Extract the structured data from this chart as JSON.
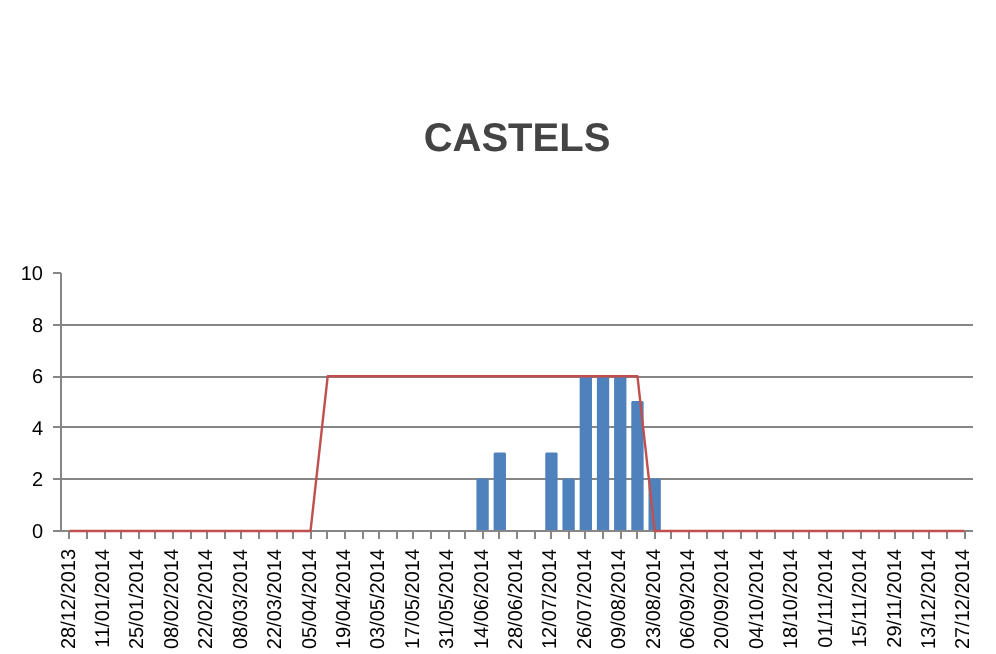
{
  "chart_data": {
    "type": "bar",
    "title": "CASTELS",
    "categories": [
      "28/12/2013",
      null,
      "11/01/2014",
      null,
      "25/01/2014",
      null,
      "08/02/2014",
      null,
      "22/02/2014",
      null,
      "08/03/2014",
      null,
      "22/03/2014",
      null,
      "05/04/2014",
      null,
      "19/04/2014",
      null,
      "03/05/2014",
      null,
      "17/05/2014",
      null,
      "31/05/2014",
      null,
      "14/06/2014",
      null,
      "28/06/2014",
      null,
      "12/07/2014",
      null,
      "26/07/2014",
      null,
      "09/08/2014",
      null,
      "23/08/2014",
      null,
      "06/09/2014",
      null,
      "20/09/2014",
      null,
      "04/10/2014",
      null,
      "18/10/2014",
      null,
      "01/11/2014",
      null,
      "15/11/2014",
      null,
      "29/11/2014",
      null,
      "13/12/2014",
      null,
      "27/12/2014"
    ],
    "series": [
      {
        "color": "#4f81bd",
        "values": [
          null,
          null,
          null,
          null,
          null,
          null,
          null,
          null,
          null,
          null,
          null,
          null,
          null,
          null,
          null,
          null,
          null,
          null,
          null,
          null,
          null,
          null,
          null,
          null,
          2,
          3,
          null,
          null,
          3,
          2,
          6,
          6,
          6,
          5,
          2,
          null,
          null,
          null,
          null,
          null,
          null,
          null,
          null,
          null,
          null,
          null,
          null,
          null,
          null,
          null,
          null,
          null,
          null
        ]
      },
      {
        "type": "line",
        "color": "#c0504d",
        "values": [
          0,
          0,
          0,
          0,
          0,
          0,
          0,
          0,
          0,
          0,
          0,
          0,
          0,
          0,
          0,
          6,
          6,
          6,
          6,
          6,
          6,
          6,
          6,
          6,
          6,
          6,
          6,
          6,
          6,
          6,
          6,
          6,
          6,
          6,
          0,
          0,
          0,
          0,
          0,
          0,
          0,
          0,
          0,
          0,
          0,
          0,
          0,
          0,
          0,
          0,
          0,
          0,
          0
        ]
      }
    ],
    "ylim": [
      0,
      10
    ],
    "yticks": [
      0,
      2,
      4,
      6,
      8,
      10
    ],
    "grid": "y"
  }
}
